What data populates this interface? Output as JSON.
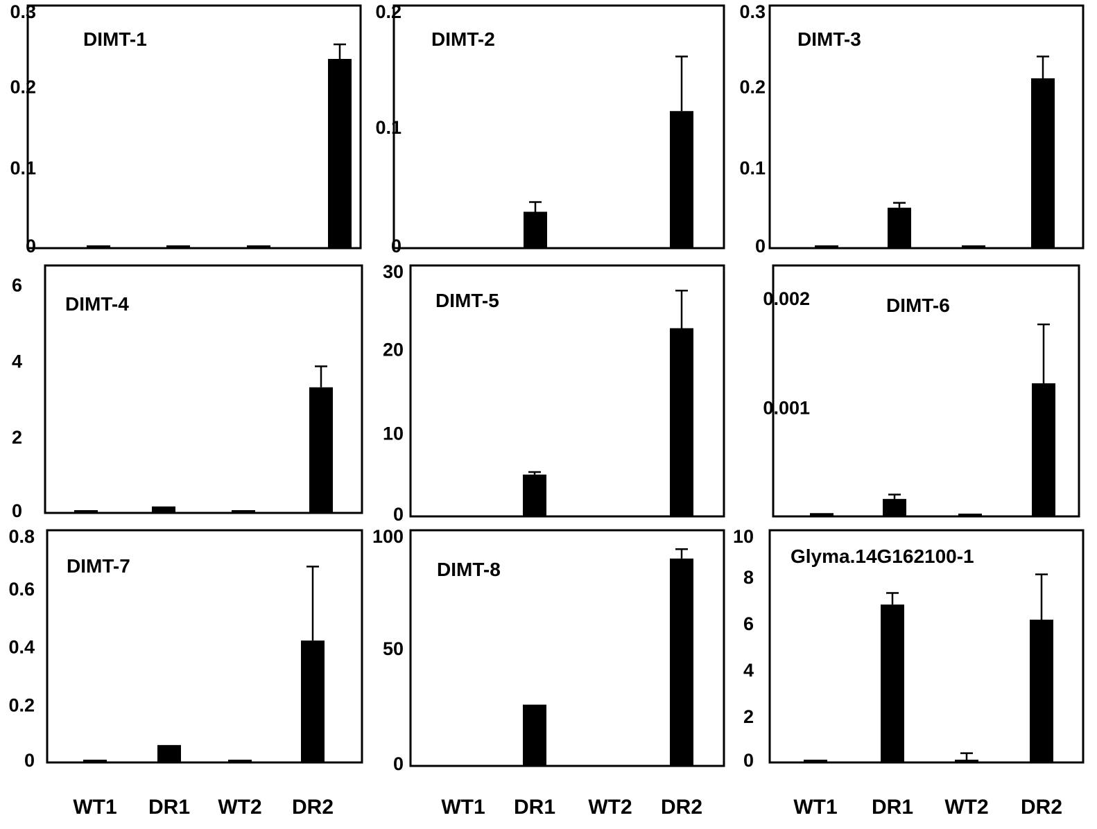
{
  "chart_data": [
    {
      "type": "bar",
      "title": "DIMT-1",
      "categories": [
        "WT1",
        "DR1",
        "WT2",
        "DR2"
      ],
      "values": [
        0.003,
        0.003,
        0.003,
        0.234
      ],
      "errors": [
        0,
        0,
        0,
        0.018
      ],
      "ylim": [
        0,
        0.3
      ],
      "yticks": [
        "0",
        "0.1",
        "0.2",
        "0.3"
      ],
      "ytick_values": [
        0,
        0.1,
        0.2,
        0.3
      ]
    },
    {
      "type": "bar",
      "title": "DIMT-2",
      "categories": [
        "WT1",
        "DR1",
        "WT2",
        "DR2"
      ],
      "values": [
        0,
        0.03,
        0,
        0.113
      ],
      "errors": [
        0,
        0.008,
        0,
        0.045
      ],
      "ylim": [
        0,
        0.2
      ],
      "yticks": [
        "0",
        "0.1",
        "0.2"
      ],
      "ytick_values": [
        0,
        0.1,
        0.2
      ]
    },
    {
      "type": "bar",
      "title": "DIMT-3",
      "categories": [
        "WT1",
        "DR1",
        "WT2",
        "DR2"
      ],
      "values": [
        0.001,
        0.05,
        0.001,
        0.21
      ],
      "errors": [
        0,
        0.006,
        0,
        0.027
      ],
      "ylim": [
        0,
        0.3
      ],
      "yticks": [
        "0",
        "0.1",
        "0.2",
        "0.3"
      ],
      "ytick_values": [
        0,
        0.1,
        0.2,
        0.3
      ]
    },
    {
      "type": "bar",
      "title": "DIMT-4",
      "categories": [
        "WT1",
        "DR1",
        "WT2",
        "DR2"
      ],
      "values": [
        0.06,
        0.17,
        0.06,
        3.3
      ],
      "errors": [
        0,
        0,
        0,
        0.55
      ],
      "ylim": [
        0,
        6.5
      ],
      "yticks": [
        "0",
        "2",
        "4",
        "6"
      ],
      "ytick_values": [
        0,
        2,
        4,
        6
      ]
    },
    {
      "type": "bar",
      "title": "DIMT-5",
      "categories": [
        "WT1",
        "DR1",
        "WT2",
        "DR2"
      ],
      "values": [
        0,
        5,
        0,
        22.5
      ],
      "errors": [
        0,
        0.3,
        0,
        4.5
      ],
      "ylim": [
        0,
        30
      ],
      "yticks": [
        "0",
        "10",
        "20",
        "30"
      ],
      "ytick_values": [
        0,
        10,
        20,
        30
      ]
    },
    {
      "type": "bar",
      "title": "DIMT-6",
      "categories": [
        "WT1",
        "DR1",
        "WT2",
        "DR2"
      ],
      "values": [
        3e-05,
        0.00016,
        2e-05,
        0.00122
      ],
      "errors": [
        0,
        4e-05,
        0,
        0.00054
      ],
      "ylim": [
        0,
        0.0023
      ],
      "yticks": [
        "0.001",
        "0.002"
      ],
      "ytick_values": [
        0.001,
        0.002
      ]
    },
    {
      "type": "bar",
      "title": "DIMT-7",
      "categories": [
        "WT1",
        "DR1",
        "WT2",
        "DR2"
      ],
      "values": [
        0.005,
        0.06,
        0.005,
        0.42
      ],
      "errors": [
        0,
        0,
        0,
        0.255
      ],
      "ylim": [
        0,
        0.8
      ],
      "yticks": [
        "0",
        "0.2",
        "0.4",
        "0.6",
        "0.8"
      ],
      "ytick_values": [
        0,
        0.2,
        0.4,
        0.6,
        0.8
      ]
    },
    {
      "type": "bar",
      "title": "DIMT-8",
      "categories": [
        "WT1",
        "DR1",
        "WT2",
        "DR2"
      ],
      "values": [
        0,
        26,
        0,
        88
      ],
      "errors": [
        0,
        0,
        0,
        4
      ],
      "ylim": [
        0,
        100
      ],
      "yticks": [
        "0",
        "50",
        "100"
      ],
      "ytick_values": [
        0,
        50,
        100
      ]
    },
    {
      "type": "bar",
      "title": "Glyma.14G162100-1",
      "categories": [
        "WT1",
        "DR1",
        "WT2",
        "DR2"
      ],
      "values": [
        0.05,
        6.8,
        0.1,
        6.15
      ],
      "errors": [
        0,
        0.5,
        0.3,
        1.95
      ],
      "ylim": [
        0,
        10
      ],
      "yticks": [
        "0",
        "2",
        "4",
        "6",
        "8",
        "10"
      ],
      "ytick_values": [
        0,
        2,
        4,
        6,
        8,
        10
      ]
    }
  ],
  "column_labels": [
    "WT1",
    "DR1",
    "WT2",
    "DR2"
  ]
}
